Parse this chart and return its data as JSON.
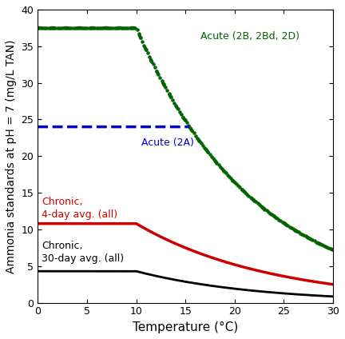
{
  "xlabel": "Temperature (°C)",
  "ylabel": "Ammonia standards at pH = 7 (mg/L TAN)",
  "xlim": [
    0,
    30
  ],
  "ylim": [
    0,
    40
  ],
  "xticks": [
    0,
    5,
    10,
    15,
    20,
    25,
    30
  ],
  "yticks": [
    0,
    5,
    10,
    15,
    20,
    25,
    30,
    35,
    40
  ],
  "acute_2B_label": "Acute (2B, 2Bd, 2D)",
  "acute_2A_label": "Acute (2A)",
  "chronic_4day_label": "Chronic,\n4-day avg. (all)",
  "chronic_30day_label": "Chronic,\n30-day avg. (all)",
  "acute_2B_color": "#006400",
  "acute_2A_color": "#0000CC",
  "chronic_4day_color": "#CC0000",
  "chronic_30day_color": "#000000",
  "background_color": "#ffffff",
  "acute_2B_flat": 37.5,
  "acute_2A_flat": 24.0,
  "chronic_4day_flat": 10.8,
  "chronic_30day_flat": 4.3,
  "T_break_acute": 10.0,
  "T_break_chronic": 10.0,
  "acute_decay": 0.036,
  "chronic_4day_decay": 0.036,
  "chronic_30day_decay": 0.036,
  "chronic_4day_end": 2.5,
  "chronic_30day_end": 0.9
}
